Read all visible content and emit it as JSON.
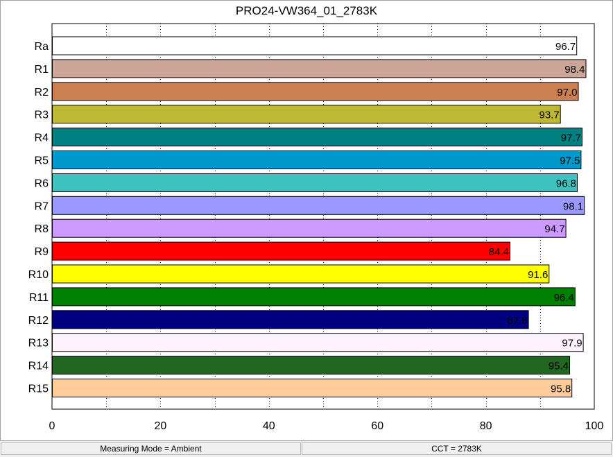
{
  "chart_data": {
    "type": "bar",
    "orientation": "horizontal",
    "title": "PRO24-VW364_01_2783K",
    "categories": [
      "Ra",
      "R1",
      "R2",
      "R3",
      "R4",
      "R5",
      "R6",
      "R7",
      "R8",
      "R9",
      "R10",
      "R11",
      "R12",
      "R13",
      "R14",
      "R15"
    ],
    "values": [
      96.7,
      98.4,
      97.0,
      93.7,
      97.7,
      97.5,
      96.8,
      98.1,
      94.7,
      84.4,
      91.6,
      96.4,
      87.8,
      97.9,
      95.4,
      95.8
    ],
    "value_labels": [
      "96.7",
      "98.4",
      "97.0",
      "93.7",
      "97.7",
      "97.5",
      "96.8",
      "98.1",
      "94.7",
      "84.4",
      "91.6",
      "96.4",
      "87.8",
      "97.9",
      "95.4",
      "95.8"
    ],
    "colors": [
      "#ffffff",
      "#cca699",
      "#cc8052",
      "#bfb833",
      "#008080",
      "#0099cc",
      "#3fc2bf",
      "#9999ff",
      "#cc99ff",
      "#ff0000",
      "#ffff00",
      "#008000",
      "#000080",
      "#fff2ff",
      "#226622",
      "#ffcc99"
    ],
    "xlim": [
      0,
      100
    ],
    "xticks": [
      0,
      20,
      40,
      60,
      80,
      100
    ],
    "xtick_labels": [
      "0",
      "20",
      "40",
      "60",
      "80",
      "100"
    ],
    "grid": true
  },
  "status": {
    "mode": "Measuring Mode = Ambient",
    "cct": "CCT = 2783K"
  }
}
